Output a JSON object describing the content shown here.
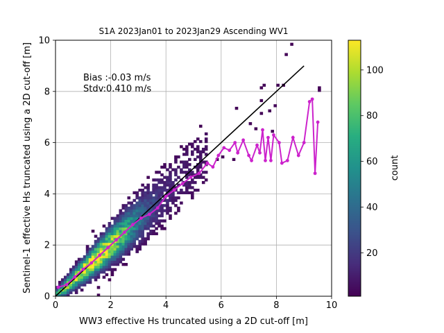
{
  "chart_data": {
    "type": "heatmap",
    "title": "S1A 2023Jan01 to 2023Jan29 Ascending WV1",
    "xlabel": "WW3 effective Hs truncated using a 2D cut-off [m]",
    "ylabel": "Sentinel-1 effective Hs truncated using a 2D cut-off [m]",
    "xlim": [
      0,
      10
    ],
    "ylim": [
      0,
      10
    ],
    "xticks": [
      "0",
      "2",
      "4",
      "6",
      "8",
      "10"
    ],
    "yticks": [
      "0",
      "2",
      "4",
      "6",
      "8",
      "10"
    ],
    "grid": true,
    "annotations": {
      "bias": "Bias :-0.03 m/s",
      "stdv": "Stdv:0.410 m/s"
    },
    "colorbar": {
      "label": "count",
      "min": 1,
      "max": 113,
      "ticks": [
        "20",
        "40",
        "60",
        "80",
        "100"
      ],
      "colormap": "viridis"
    },
    "reference_line": {
      "x": [
        0,
        9
      ],
      "y": [
        0,
        9
      ],
      "color": "#000000"
    },
    "mean_curve": {
      "color": "#cc22cc",
      "points": [
        [
          0.1,
          0.35
        ],
        [
          0.4,
          0.45
        ],
        [
          0.7,
          0.75
        ],
        [
          1.0,
          1.05
        ],
        [
          1.3,
          1.3
        ],
        [
          1.6,
          1.6
        ],
        [
          1.9,
          1.9
        ],
        [
          2.2,
          2.2
        ],
        [
          2.5,
          2.5
        ],
        [
          2.8,
          2.8
        ],
        [
          3.1,
          3.05
        ],
        [
          3.4,
          3.2
        ],
        [
          3.7,
          3.45
        ],
        [
          4.0,
          3.9
        ],
        [
          4.3,
          4.15
        ],
        [
          4.6,
          4.4
        ],
        [
          4.9,
          4.65
        ],
        [
          5.2,
          4.8
        ],
        [
          5.5,
          5.2
        ],
        [
          5.7,
          5.05
        ],
        [
          5.9,
          5.5
        ],
        [
          6.1,
          5.8
        ],
        [
          6.3,
          5.7
        ],
        [
          6.5,
          6.0
        ],
        [
          6.6,
          5.6
        ],
        [
          6.8,
          6.1
        ],
        [
          7.0,
          5.5
        ],
        [
          7.1,
          5.3
        ],
        [
          7.3,
          5.9
        ],
        [
          7.4,
          5.6
        ],
        [
          7.5,
          6.5
        ],
        [
          7.6,
          5.3
        ],
        [
          7.7,
          6.2
        ],
        [
          7.8,
          5.3
        ],
        [
          7.9,
          6.3
        ],
        [
          8.1,
          6.0
        ],
        [
          8.2,
          5.2
        ],
        [
          8.4,
          5.3
        ],
        [
          8.6,
          6.2
        ],
        [
          8.8,
          5.5
        ],
        [
          9.0,
          6.0
        ],
        [
          9.2,
          7.6
        ],
        [
          9.3,
          7.7
        ],
        [
          9.4,
          4.8
        ],
        [
          9.5,
          6.8
        ]
      ]
    },
    "density": {
      "ridge_width_fraction": 0.11,
      "peak_x": 1.5,
      "peak_y": 1.45
    }
  }
}
